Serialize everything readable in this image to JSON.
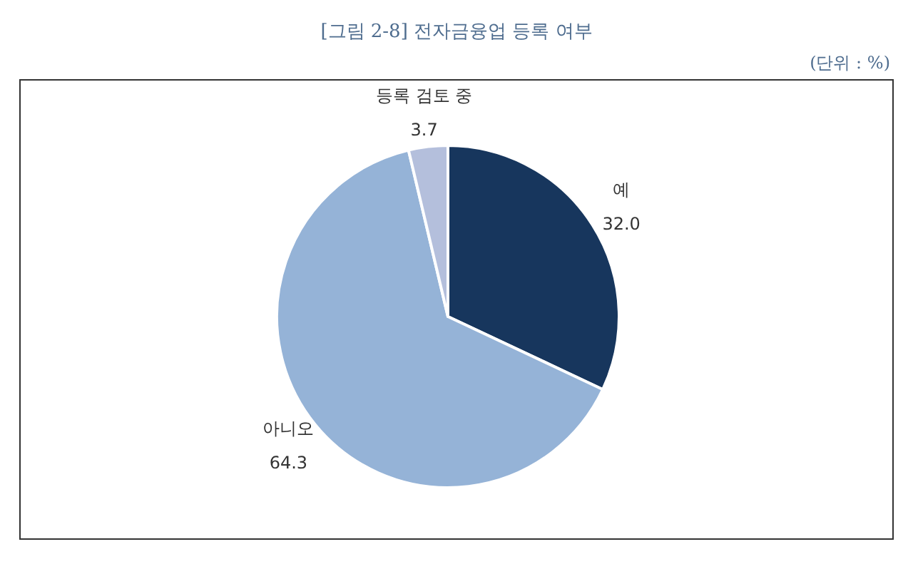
{
  "chart_data": {
    "type": "pie",
    "title": "[그림 2-8] 전자금융업 등록 여부",
    "annotations": [
      "(단위 : %)"
    ],
    "categories": [
      "예",
      "아니오",
      "등록 검토 중"
    ],
    "values": [
      32.0,
      64.3,
      3.7
    ],
    "colors": [
      "#17365d",
      "#95b3d7",
      "#b4bfdc"
    ],
    "value_labels": [
      "32.0",
      "64.3",
      "3.7"
    ]
  }
}
